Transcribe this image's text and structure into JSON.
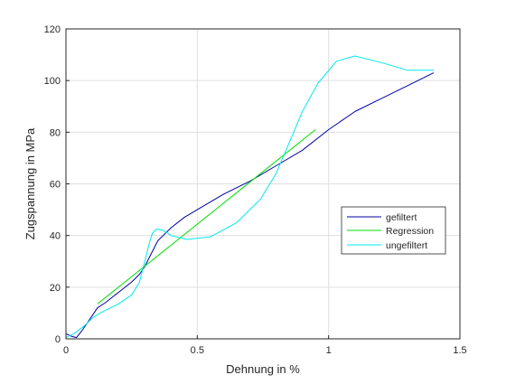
{
  "chart_data": {
    "type": "line",
    "title": "",
    "xlabel": "Dehnung in %",
    "ylabel": "Zugspannung in MPa",
    "xlim": [
      0,
      1.5
    ],
    "ylim": [
      0,
      120
    ],
    "xticks": [
      0,
      0.5,
      1,
      1.5
    ],
    "xtick_labels": [
      "0",
      "0.5",
      "1",
      "1.5"
    ],
    "yticks": [
      0,
      20,
      40,
      60,
      80,
      100,
      120
    ],
    "ytick_labels": [
      "0",
      "20",
      "40",
      "60",
      "80",
      "100",
      "120"
    ],
    "grid": true,
    "legend_position": "right",
    "series": [
      {
        "name": "gefiltert",
        "color": "#0000aa",
        "x": [
          0,
          0.02,
          0.04,
          0.06,
          0.08,
          0.1,
          0.12,
          0.15,
          0.2,
          0.25,
          0.28,
          0.3,
          0.32,
          0.35,
          0.4,
          0.45,
          0.5,
          0.6,
          0.7,
          0.8,
          0.9,
          1.0,
          1.1,
          1.2,
          1.3,
          1.4
        ],
        "y": [
          2,
          1,
          0.5,
          3,
          6,
          9,
          12,
          14,
          18,
          22,
          25,
          28,
          32,
          38,
          43,
          47,
          50,
          56,
          61,
          67,
          73,
          81,
          88,
          93,
          98,
          103
        ]
      },
      {
        "name": "Regression",
        "color": "#00dd00",
        "x": [
          0.12,
          0.95
        ],
        "y": [
          13.5,
          81
        ]
      },
      {
        "name": "ungefiltert",
        "color": "#00e8ee",
        "x": [
          0,
          0.03,
          0.07,
          0.1,
          0.13,
          0.16,
          0.2,
          0.25,
          0.28,
          0.3,
          0.31,
          0.32,
          0.33,
          0.345,
          0.37,
          0.4,
          0.46,
          0.55,
          0.65,
          0.74,
          0.8,
          0.85,
          0.9,
          0.96,
          1.03,
          1.1,
          1.2,
          1.3,
          1.4
        ],
        "y": [
          0.5,
          2,
          5,
          8,
          10,
          11.5,
          13.5,
          17,
          22,
          30,
          34,
          38,
          41,
          42.5,
          42,
          40,
          38.5,
          39.5,
          45,
          54,
          64,
          76,
          88,
          99,
          107.5,
          109.5,
          107,
          104,
          104
        ]
      }
    ]
  }
}
